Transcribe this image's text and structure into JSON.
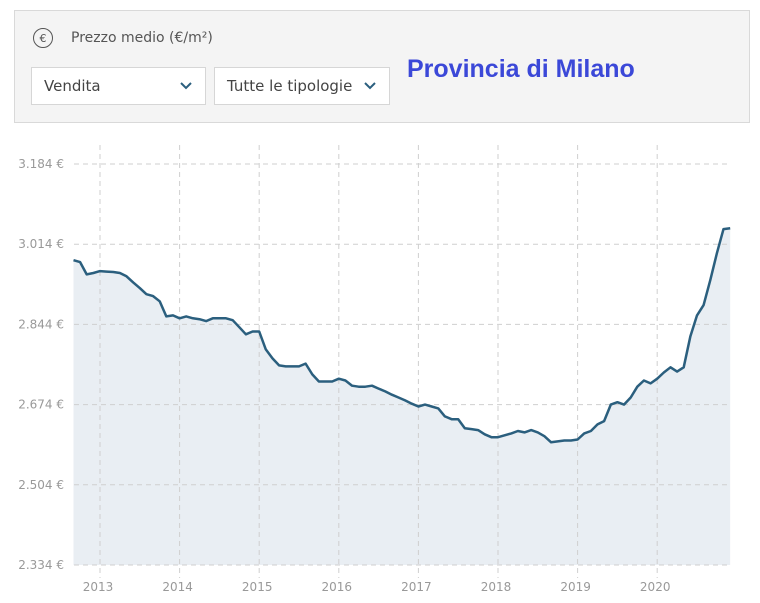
{
  "header": {
    "icon": "euro-icon",
    "title": "Prezzo medio (€/m²)",
    "contract_select": "Vendita",
    "type_select": "Tutte le tipologie",
    "region_title": "Provincia di Milano"
  },
  "colors": {
    "line": "#2b5f7e",
    "fill": "#e9eef3",
    "title": "#3b48d8"
  },
  "chart_data": {
    "type": "area",
    "title": "Prezzo medio (€/m²)",
    "xlabel": "",
    "ylabel": "€/m²",
    "start_month": "2012-09",
    "frequency": "monthly",
    "ylim": [
      2334,
      3184
    ],
    "y_ticks": [
      3184,
      3014,
      2844,
      2674,
      2504,
      2334
    ],
    "y_tick_labels": [
      "3.184 €",
      "3.014 €",
      "2.844 €",
      "2.674 €",
      "2.504 €",
      "2.334 €"
    ],
    "x_ticks": [
      2013,
      2014,
      2015,
      2016,
      2017,
      2018,
      2019,
      2020
    ],
    "x_tick_labels": [
      "2013",
      "2014",
      "2015",
      "2016",
      "2017",
      "2018",
      "2019",
      "2020"
    ],
    "grid": true,
    "values": [
      2980,
      2976,
      2950,
      2953,
      2957,
      2956,
      2955,
      2953,
      2946,
      2933,
      2921,
      2908,
      2904,
      2893,
      2861,
      2863,
      2857,
      2861,
      2857,
      2855,
      2851,
      2857,
      2857,
      2857,
      2853,
      2838,
      2823,
      2829,
      2829,
      2791,
      2772,
      2757,
      2755,
      2755,
      2755,
      2761,
      2738,
      2723,
      2723,
      2723,
      2729,
      2725,
      2714,
      2712,
      2712,
      2714,
      2708,
      2702,
      2695,
      2689,
      2683,
      2676,
      2670,
      2674,
      2670,
      2666,
      2649,
      2643,
      2643,
      2624,
      2622,
      2620,
      2611,
      2605,
      2605,
      2609,
      2613,
      2618,
      2615,
      2620,
      2615,
      2607,
      2594,
      2596,
      2598,
      2598,
      2600,
      2613,
      2618,
      2632,
      2639,
      2674,
      2679,
      2674,
      2689,
      2712,
      2725,
      2719,
      2729,
      2742,
      2753,
      2744,
      2753,
      2819,
      2863,
      2885,
      2938,
      2995,
      3046,
      3048
    ]
  }
}
